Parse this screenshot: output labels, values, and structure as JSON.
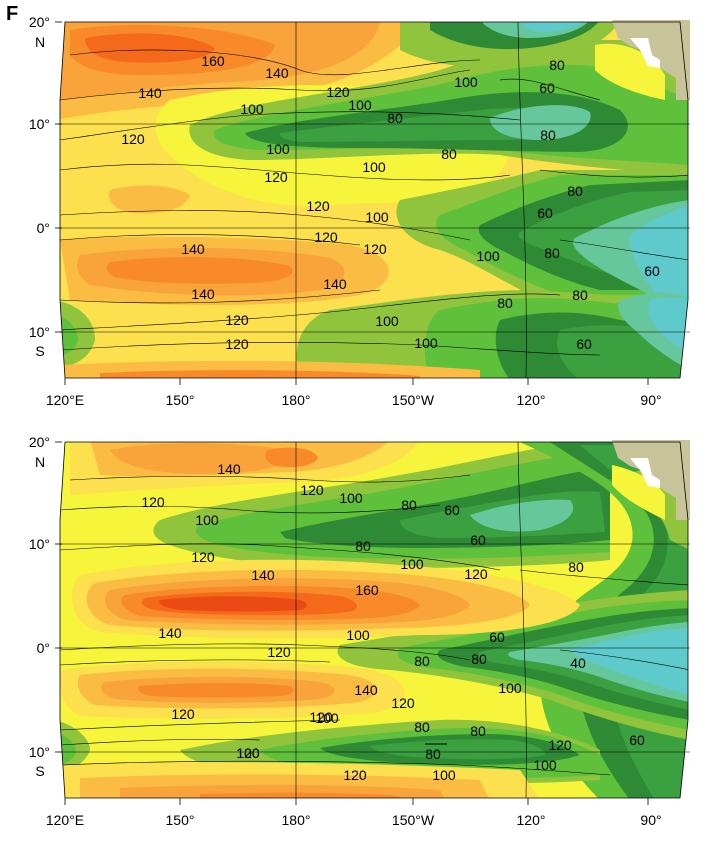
{
  "panel_letter": "F",
  "colors": {
    "c40": "#5ecacb",
    "c60": "#66c79c",
    "c70": "#3aa040",
    "c80": "#2f8a35",
    "c90": "#5fc03b",
    "c100": "#8fc43c",
    "c110": "#f6f53b",
    "c120": "#fce04d",
    "c130": "#fbbc44",
    "c140": "#f9a33b",
    "c150": "#f88a2a",
    "c160": "#f46a1a",
    "c170": "#ec4a14",
    "land": "#c8c49a",
    "background": "#ffffff"
  },
  "axes": {
    "lat_ticks": [
      "20°",
      "10°",
      "0°",
      "10°"
    ],
    "lat_hemispheres": [
      "N",
      "S"
    ],
    "lon_ticks": [
      "120°E",
      "150°",
      "180°",
      "150°W",
      "120°",
      "90°"
    ]
  },
  "panels": [
    {
      "id": "top",
      "contour_labels": [
        "160",
        "140",
        "140",
        "120",
        "100",
        "100",
        "80",
        "80",
        "120",
        "100",
        "80",
        "60",
        "120",
        "80",
        "80",
        "120",
        "100",
        "100",
        "120",
        "60",
        "80",
        "100",
        "140",
        "120",
        "140",
        "100",
        "80",
        "140",
        "80",
        "60",
        "120",
        "100",
        "120",
        "100",
        "60"
      ]
    },
    {
      "id": "bottom",
      "contour_labels": [
        "140",
        "120",
        "100",
        "80",
        "60",
        "120",
        "100",
        "80",
        "60",
        "120",
        "100",
        "140",
        "120",
        "80",
        "160",
        "140",
        "80",
        "100",
        "60",
        "120",
        "80",
        "40",
        "140",
        "100",
        "120",
        "100",
        "80",
        "80",
        "120",
        "100",
        "120",
        "60",
        "100",
        "80",
        "120",
        "100",
        "120",
        "120"
      ]
    }
  ]
}
